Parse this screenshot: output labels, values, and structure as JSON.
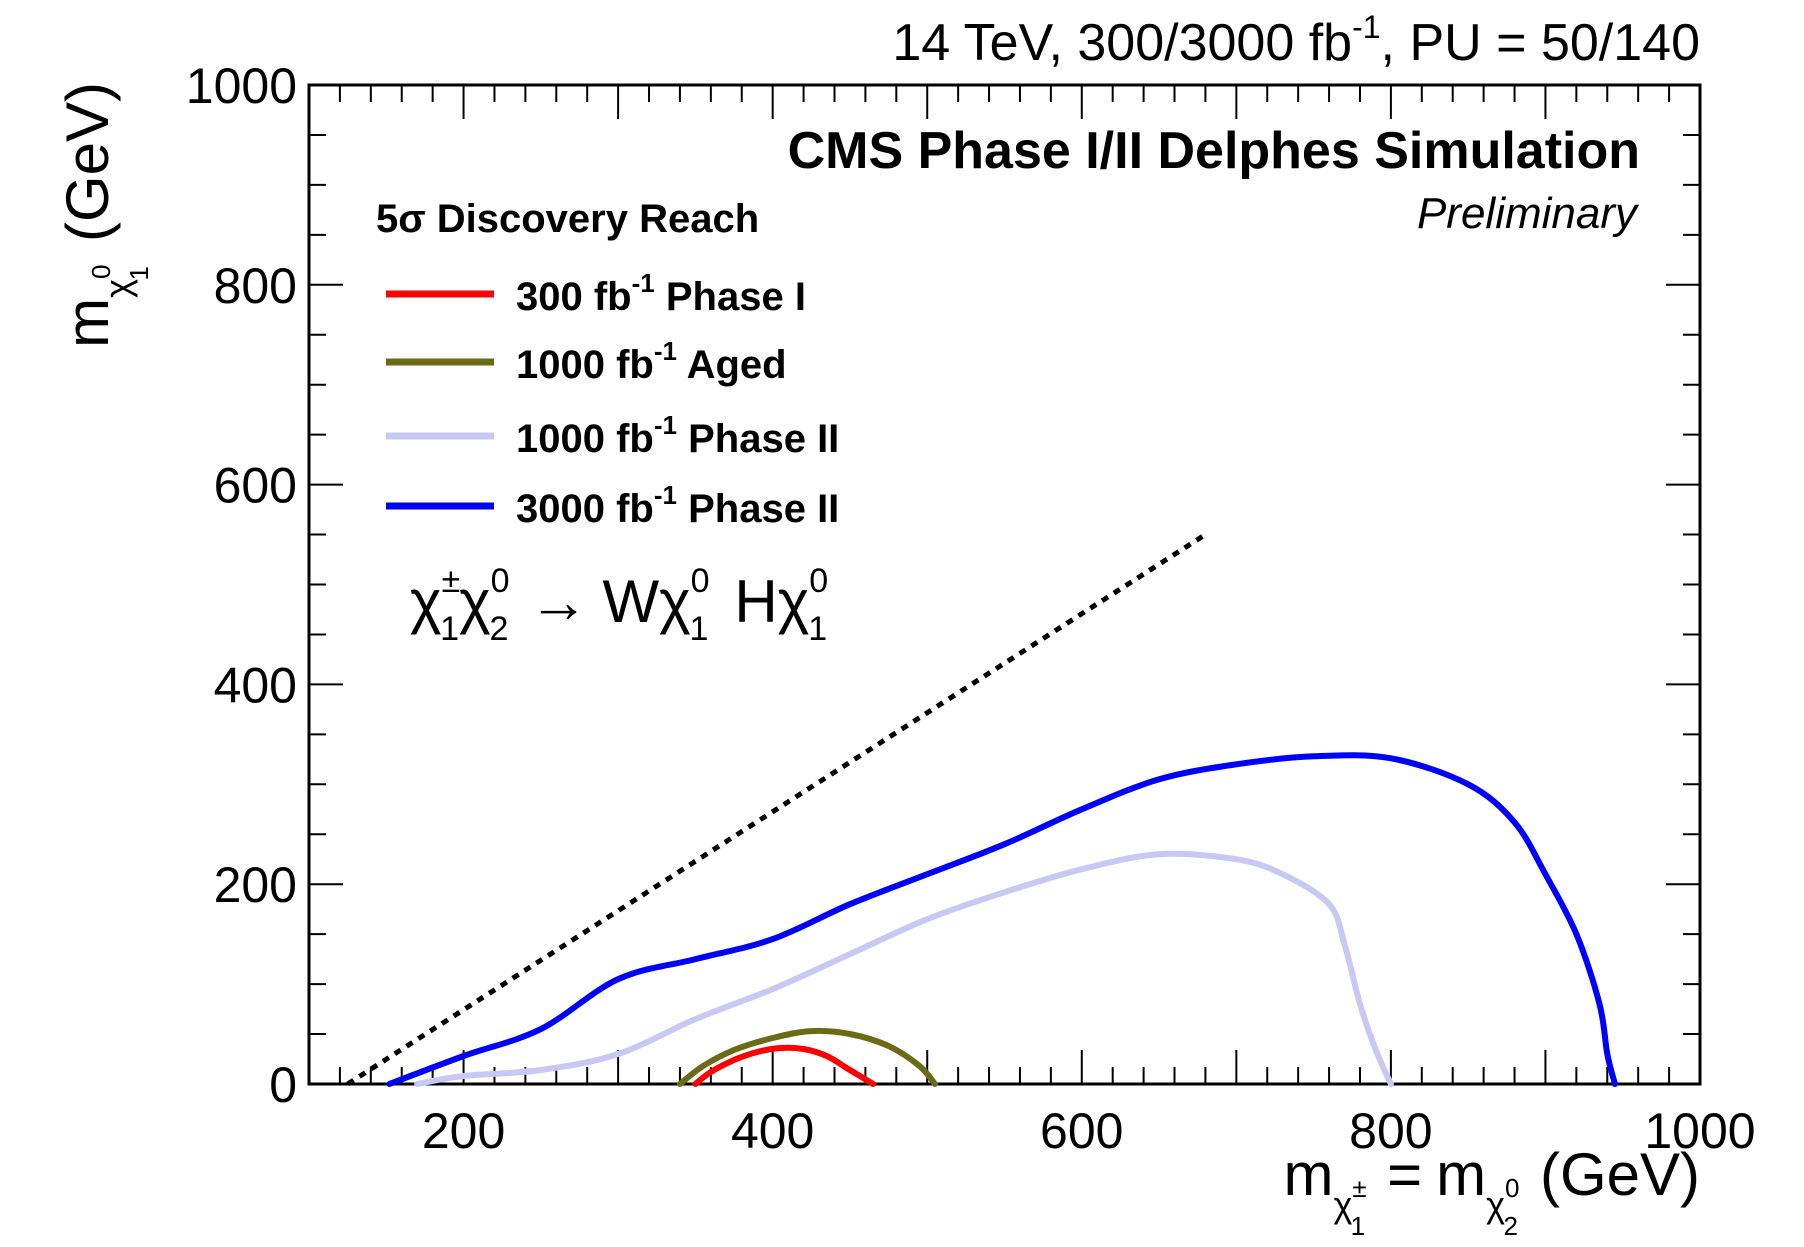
{
  "chart_data": {
    "type": "line",
    "header": "14 TeV, 300/3000 fb-1, PU = 50/140",
    "experiment": "CMS Phase I/II Delphes Simulation",
    "status": "Preliminary",
    "process": "χ̃±1χ̃02 → Wχ̃01 Hχ̃01",
    "xlabel": "m(χ̃±1) = m(χ̃02) (GeV)",
    "ylabel": "m(χ̃01) (GeV)",
    "xlim": [
      100,
      1000
    ],
    "ylim": [
      0,
      1000
    ],
    "x_ticks": [
      200,
      400,
      600,
      800,
      1000
    ],
    "y_ticks": [
      0,
      200,
      400,
      600,
      800,
      1000
    ],
    "grid": false,
    "legend": {
      "title": "5σ Discovery Reach",
      "placement": "top-left"
    },
    "diagonal": {
      "style": "dotted",
      "color": "#000000",
      "x": [
        125,
        680
      ],
      "y": [
        0,
        550
      ]
    },
    "series": [
      {
        "name": "300 fb-1 Phase I",
        "legend_text": "300 fb",
        "color": "#ff0000",
        "x": [
          350,
          360,
          375,
          390,
          405,
          420,
          435,
          450,
          465
        ],
        "y": [
          0,
          12,
          24,
          32,
          36,
          35,
          28,
          14,
          0
        ]
      },
      {
        "name": "1000 fb-1 Aged",
        "legend_text": "1000 fb",
        "color": "#6b6b16",
        "x": [
          340,
          355,
          375,
          400,
          425,
          450,
          475,
          495,
          505
        ],
        "y": [
          0,
          18,
          34,
          46,
          53,
          50,
          38,
          18,
          0
        ]
      },
      {
        "name": "1000 fb-1 Phase II",
        "legend_text": "1000 fb",
        "color": "#c8c8f5",
        "x": [
          170,
          200,
          250,
          300,
          350,
          400,
          450,
          500,
          550,
          600,
          650,
          700,
          730,
          760,
          770,
          780,
          790,
          800
        ],
        "y": [
          0,
          8,
          14,
          30,
          65,
          95,
          130,
          165,
          192,
          215,
          230,
          225,
          210,
          180,
          140,
          80,
          35,
          0
        ]
      },
      {
        "name": "3000 fb-1 Phase II",
        "legend_text": "3000 fb",
        "color": "#0000ff",
        "x": [
          152,
          200,
          250,
          300,
          350,
          400,
          450,
          500,
          550,
          600,
          650,
          700,
          750,
          800,
          850,
          880,
          900,
          920,
          935,
          940,
          945
        ],
        "y": [
          0,
          28,
          55,
          105,
          125,
          145,
          180,
          210,
          240,
          275,
          305,
          320,
          328,
          326,
          300,
          262,
          210,
          150,
          80,
          30,
          0
        ]
      }
    ]
  },
  "legend_entries": [
    {
      "main": "300 fb",
      "sup": "-1",
      "rest": " Phase I"
    },
    {
      "main": "1000 fb",
      "sup": "-1",
      "rest": " Aged"
    },
    {
      "main": "1000 fb",
      "sup": "-1",
      "rest": " Phase II"
    },
    {
      "main": "3000 fb",
      "sup": "-1",
      "rest": " Phase II"
    }
  ],
  "header_parts": {
    "a": "14 TeV, 300/3000 fb",
    "sup": "-1",
    "b": ", PU = 50/140"
  },
  "axis_text": {
    "m": "m",
    "gev": "(GeV)",
    "eq": "=",
    "chi": "χ",
    "pm": "±",
    "zero": "0",
    "one": "1",
    "two": "2",
    "arrow": "→",
    "W": "W",
    "H": "H"
  }
}
